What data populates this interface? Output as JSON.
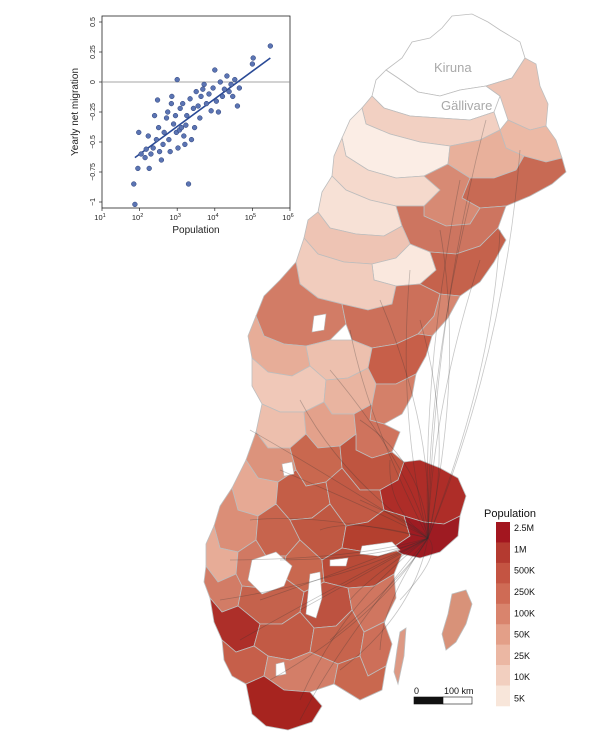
{
  "map": {
    "cities": [
      {
        "name": "Kiruna"
      },
      {
        "name": "Gällivare"
      }
    ],
    "colors": {
      "land_low": "#f8e6da",
      "land_mid": "#d98570",
      "land_high": "#9e1b22",
      "outline": "#bdbdbd",
      "flow": "#333333"
    }
  },
  "legend": {
    "title": "Population",
    "labels": [
      "2.5M",
      "1M",
      "500K",
      "250K",
      "100K",
      "50K",
      "25K",
      "10K",
      "5K"
    ],
    "colors": [
      "#a3161f",
      "#b43a30",
      "#c45442",
      "#cf6b55",
      "#d9846d",
      "#e39f88",
      "#ebb7a3",
      "#f2cfbf",
      "#f8e6da"
    ]
  },
  "scale_bar": {
    "zero_label": "0",
    "distance_label": "100 km"
  },
  "inset": {
    "xlabel": "Population",
    "ylabel": "Yearly net migration",
    "x_tick_base": "10",
    "x_tick_exponents": [
      "1",
      "2",
      "3",
      "4",
      "5",
      "6"
    ],
    "y_tick_labels": [
      "0.5",
      "0.25",
      "0",
      "−0.25",
      "−0.5",
      "−0.75",
      "−1"
    ]
  },
  "chart_data": {
    "type": "scatter",
    "title": "",
    "xlabel": "Population",
    "ylabel": "Yearly net migration",
    "xscale": "log",
    "xlim": [
      10,
      1000000
    ],
    "ylim": [
      -1.05,
      0.55
    ],
    "grid": false,
    "marker_color": "#5b74b3",
    "line_color": "#2a4a96",
    "points": [
      [
        70,
        -0.85
      ],
      [
        75,
        -1.02
      ],
      [
        90,
        -0.72
      ],
      [
        95,
        -0.42
      ],
      [
        110,
        -0.6
      ],
      [
        140,
        -0.63
      ],
      [
        150,
        -0.56
      ],
      [
        170,
        -0.45
      ],
      [
        180,
        -0.72
      ],
      [
        200,
        -0.6
      ],
      [
        230,
        -0.55
      ],
      [
        250,
        -0.28
      ],
      [
        280,
        -0.48
      ],
      [
        300,
        -0.15
      ],
      [
        320,
        -0.38
      ],
      [
        340,
        -0.58
      ],
      [
        380,
        -0.65
      ],
      [
        420,
        -0.52
      ],
      [
        450,
        -0.42
      ],
      [
        520,
        -0.3
      ],
      [
        560,
        -0.25
      ],
      [
        600,
        -0.48
      ],
      [
        650,
        -0.58
      ],
      [
        700,
        -0.18
      ],
      [
        720,
        -0.12
      ],
      [
        800,
        -0.35
      ],
      [
        900,
        -0.28
      ],
      [
        950,
        -0.42
      ],
      [
        1000,
        0.02
      ],
      [
        1050,
        -0.55
      ],
      [
        1150,
        -0.4
      ],
      [
        1200,
        -0.22
      ],
      [
        1300,
        -0.38
      ],
      [
        1400,
        -0.18
      ],
      [
        1500,
        -0.45
      ],
      [
        1600,
        -0.52
      ],
      [
        1700,
        -0.36
      ],
      [
        1800,
        -0.28
      ],
      [
        2000,
        -0.85
      ],
      [
        2200,
        -0.14
      ],
      [
        2400,
        -0.48
      ],
      [
        2700,
        -0.22
      ],
      [
        2900,
        -0.38
      ],
      [
        3200,
        -0.08
      ],
      [
        3600,
        -0.2
      ],
      [
        4000,
        -0.3
      ],
      [
        4300,
        -0.12
      ],
      [
        4800,
        -0.06
      ],
      [
        5200,
        -0.02
      ],
      [
        6000,
        -0.18
      ],
      [
        7000,
        -0.1
      ],
      [
        8000,
        -0.24
      ],
      [
        9000,
        -0.05
      ],
      [
        10000,
        0.1
      ],
      [
        11000,
        -0.16
      ],
      [
        12500,
        -0.25
      ],
      [
        14000,
        0.0
      ],
      [
        16000,
        -0.12
      ],
      [
        18000,
        -0.06
      ],
      [
        21000,
        0.05
      ],
      [
        24000,
        -0.08
      ],
      [
        27000,
        -0.02
      ],
      [
        30000,
        -0.12
      ],
      [
        34000,
        0.02
      ],
      [
        40000,
        -0.2
      ],
      [
        45000,
        -0.05
      ],
      [
        100000,
        0.15
      ],
      [
        105000,
        0.2
      ],
      [
        300000,
        0.3
      ]
    ],
    "trend": [
      [
        75,
        -0.63
      ],
      [
        300000,
        0.2
      ]
    ]
  }
}
